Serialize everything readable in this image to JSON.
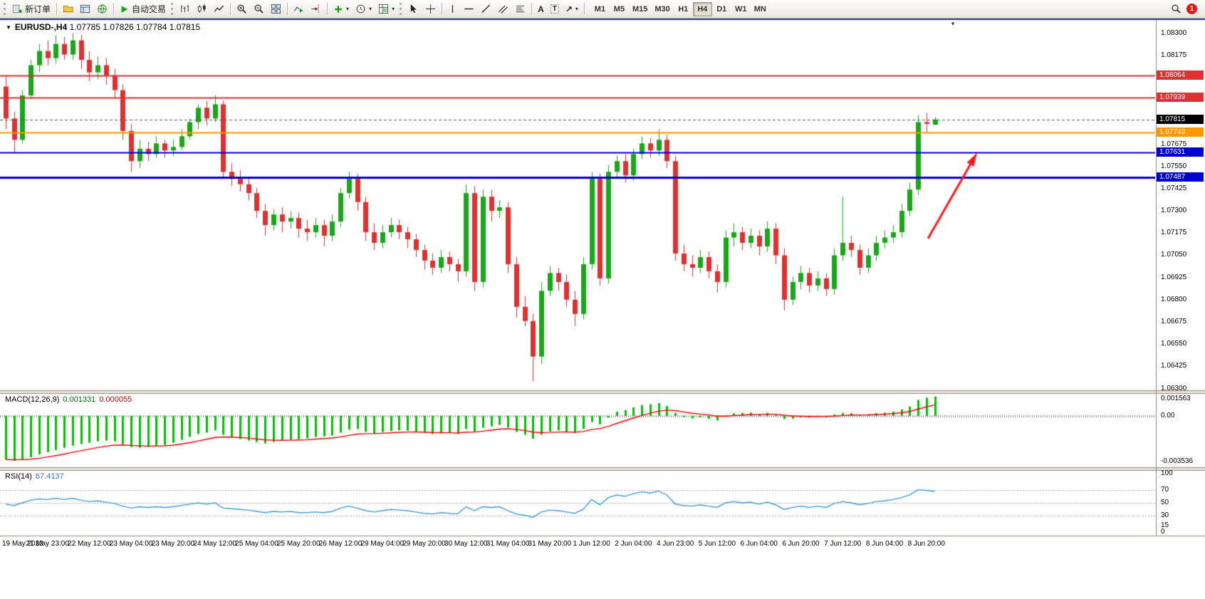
{
  "toolbar": {
    "new_order_label": "新订单",
    "autotrade_label": "自动交易",
    "timeframes": [
      "M1",
      "M5",
      "M15",
      "M30",
      "H1",
      "H4",
      "D1",
      "W1",
      "MN"
    ],
    "active_timeframe": "H4",
    "notification_count": "1"
  },
  "chart": {
    "symbol_period": "EURUSD-,H4",
    "ohlc": "1.07785 1.07826 1.07784 1.07815"
  },
  "chart_data": {
    "type": "candlestick",
    "symbol": "EURUSD-",
    "timeframe": "H4",
    "price_max": 1.08375,
    "price_min": 1.0629,
    "y_ticks": [
      "1.08300",
      "1.08175",
      "1.08050",
      "1.07925",
      "1.07800",
      "1.07675",
      "1.07550",
      "1.07425",
      "1.07300",
      "1.07175",
      "1.07050",
      "1.06925",
      "1.06800",
      "1.06675",
      "1.06550",
      "1.06425",
      "1.06300"
    ],
    "x_labels": [
      "19 May 2023",
      "21 May 23:00",
      "22 May 12:00",
      "23 May 04:00",
      "23 May 20:00",
      "24 May 12:00",
      "25 May 04:00",
      "25 May 20:00",
      "26 May 12:00",
      "29 May 04:00",
      "29 May 20:00",
      "30 May 12:00",
      "31 May 04:00",
      "31 May 20:00",
      "1 Jun 12:00",
      "2 Jun 04:00",
      "4 Jun 23:00",
      "5 Jun 12:00",
      "6 Jun 04:00",
      "6 Jun 20:00",
      "7 Jun 12:00",
      "8 Jun 04:00",
      "8 Jun 20:00"
    ],
    "x_label_step": 5,
    "right_empty_slots": 26,
    "hlines": [
      {
        "price": 1.08064,
        "label": "1.08064",
        "color": "#e03030",
        "width": 2
      },
      {
        "price": 1.07939,
        "label": "1.07939",
        "color": "#e03030",
        "width": 2
      },
      {
        "price": 1.07743,
        "label": "1.07743",
        "color": "#ff9800",
        "width": 2
      },
      {
        "price": 1.07631,
        "label": "1.07631",
        "color": "#0000d0",
        "width": 2
      },
      {
        "price": 1.07487,
        "label": "1.07487",
        "color": "#0000d0",
        "width": 3
      }
    ],
    "bid": {
      "price": 1.07815,
      "label": "1.07815",
      "color": "#000000"
    },
    "arrow": {
      "from_slot": 110.2,
      "from_price": 1.07145,
      "to_slot": 115.6,
      "to_price": 1.0759,
      "color": "#ff1a1a"
    },
    "candles": [
      [
        1.08,
        1.0806,
        1.0776,
        1.0782
      ],
      [
        1.0782,
        1.0786,
        1.0763,
        1.077
      ],
      [
        1.077,
        1.0798,
        1.0768,
        1.0795
      ],
      [
        1.0795,
        1.0815,
        1.0793,
        1.0812
      ],
      [
        1.0812,
        1.0824,
        1.0808,
        1.082
      ],
      [
        1.082,
        1.0826,
        1.0812,
        1.0816
      ],
      [
        1.0816,
        1.0829,
        1.0813,
        1.0824
      ],
      [
        1.0824,
        1.0828,
        1.0815,
        1.0818
      ],
      [
        1.0818,
        1.083,
        1.0815,
        1.0826
      ],
      [
        1.0826,
        1.0829,
        1.081,
        1.0815
      ],
      [
        1.0815,
        1.082,
        1.0803,
        1.0808
      ],
      [
        1.0808,
        1.0817,
        1.0804,
        1.0812
      ],
      [
        1.0812,
        1.0816,
        1.0801,
        1.0806
      ],
      [
        1.0806,
        1.081,
        1.0793,
        1.0798
      ],
      [
        1.0798,
        1.0801,
        1.077,
        1.0775
      ],
      [
        1.0775,
        1.0779,
        1.0752,
        1.0758
      ],
      [
        1.0758,
        1.077,
        1.0754,
        1.0765
      ],
      [
        1.0765,
        1.0769,
        1.0758,
        1.0762
      ],
      [
        1.0762,
        1.0772,
        1.076,
        1.0768
      ],
      [
        1.0768,
        1.077,
        1.076,
        1.0764
      ],
      [
        1.0764,
        1.077,
        1.0761,
        1.0766
      ],
      [
        1.0766,
        1.0776,
        1.0764,
        1.0772
      ],
      [
        1.0772,
        1.0782,
        1.077,
        1.078
      ],
      [
        1.078,
        1.079,
        1.0776,
        1.0788
      ],
      [
        1.0788,
        1.0792,
        1.0778,
        1.0782
      ],
      [
        1.0782,
        1.0795,
        1.078,
        1.079
      ],
      [
        1.079,
        1.0792,
        1.0748,
        1.0752
      ],
      [
        1.0752,
        1.0757,
        1.0744,
        1.0748
      ],
      [
        1.0748,
        1.0753,
        1.0741,
        1.0745
      ],
      [
        1.0745,
        1.0749,
        1.0736,
        1.074
      ],
      [
        1.074,
        1.0743,
        1.0726,
        1.073
      ],
      [
        1.073,
        1.0734,
        1.0716,
        1.0722
      ],
      [
        1.0722,
        1.0731,
        1.0719,
        1.0728
      ],
      [
        1.0728,
        1.0732,
        1.0718,
        1.0724
      ],
      [
        1.0724,
        1.073,
        1.072,
        1.0726
      ],
      [
        1.0726,
        1.0729,
        1.0715,
        1.072
      ],
      [
        1.072,
        1.0725,
        1.0713,
        1.0718
      ],
      [
        1.0718,
        1.0726,
        1.0715,
        1.0722
      ],
      [
        1.0722,
        1.0725,
        1.071,
        1.0716
      ],
      [
        1.0716,
        1.0728,
        1.0713,
        1.0724
      ],
      [
        1.0724,
        1.0743,
        1.0721,
        1.074
      ],
      [
        1.074,
        1.0752,
        1.0737,
        1.0748
      ],
      [
        1.0748,
        1.0751,
        1.073,
        1.0735
      ],
      [
        1.0735,
        1.0738,
        1.0713,
        1.0718
      ],
      [
        1.0718,
        1.0723,
        1.0708,
        1.0712
      ],
      [
        1.0712,
        1.0722,
        1.0709,
        1.0718
      ],
      [
        1.0718,
        1.0726,
        1.0715,
        1.0722
      ],
      [
        1.0722,
        1.0725,
        1.0714,
        1.0718
      ],
      [
        1.0718,
        1.0721,
        1.0709,
        1.0714
      ],
      [
        1.0714,
        1.0717,
        1.0704,
        1.0708
      ],
      [
        1.0708,
        1.0711,
        1.0697,
        1.0702
      ],
      [
        1.0702,
        1.0706,
        1.0694,
        1.0698
      ],
      [
        1.0698,
        1.0708,
        1.0695,
        1.0704
      ],
      [
        1.0704,
        1.0707,
        1.0696,
        1.07
      ],
      [
        1.07,
        1.0703,
        1.069,
        1.0696
      ],
      [
        1.0696,
        1.0745,
        1.0693,
        1.074
      ],
      [
        1.074,
        1.0744,
        1.0685,
        1.069
      ],
      [
        1.069,
        1.0742,
        1.0687,
        1.0738
      ],
      [
        1.0738,
        1.0742,
        1.0724,
        1.073
      ],
      [
        1.073,
        1.0736,
        1.0726,
        1.0732
      ],
      [
        1.0732,
        1.0735,
        1.0695,
        1.07
      ],
      [
        1.07,
        1.0704,
        1.067,
        1.0676
      ],
      [
        1.0676,
        1.0682,
        1.0665,
        1.0668
      ],
      [
        1.0668,
        1.0672,
        1.0634,
        1.0648
      ],
      [
        1.0648,
        1.069,
        1.0644,
        1.0685
      ],
      [
        1.0685,
        1.0699,
        1.0682,
        1.0695
      ],
      [
        1.0695,
        1.0698,
        1.0685,
        1.069
      ],
      [
        1.069,
        1.0694,
        1.0676,
        1.068
      ],
      [
        1.068,
        1.0685,
        1.0665,
        1.0672
      ],
      [
        1.0672,
        1.0704,
        1.0669,
        1.07
      ],
      [
        1.07,
        1.0752,
        1.0697,
        1.0748
      ],
      [
        1.0748,
        1.0751,
        1.0688,
        1.0692
      ],
      [
        1.0692,
        1.0756,
        1.0689,
        1.0752
      ],
      [
        1.0752,
        1.0761,
        1.0748,
        1.0758
      ],
      [
        1.0758,
        1.0762,
        1.0746,
        1.075
      ],
      [
        1.075,
        1.0765,
        1.0747,
        1.0762
      ],
      [
        1.0762,
        1.0772,
        1.0759,
        1.0768
      ],
      [
        1.0768,
        1.0771,
        1.076,
        1.0764
      ],
      [
        1.0764,
        1.0776,
        1.0761,
        1.077
      ],
      [
        1.077,
        1.0773,
        1.0754,
        1.0758
      ],
      [
        1.0758,
        1.0761,
        1.0702,
        1.0706
      ],
      [
        1.0706,
        1.0711,
        1.0696,
        1.07
      ],
      [
        1.07,
        1.0705,
        1.0693,
        1.0698
      ],
      [
        1.0698,
        1.0708,
        1.0695,
        1.0704
      ],
      [
        1.0704,
        1.0707,
        1.0692,
        1.0696
      ],
      [
        1.0696,
        1.07,
        1.0684,
        1.069
      ],
      [
        1.069,
        1.0719,
        1.0687,
        1.0715
      ],
      [
        1.0715,
        1.0723,
        1.071,
        1.0718
      ],
      [
        1.0718,
        1.0721,
        1.0708,
        1.0712
      ],
      [
        1.0712,
        1.072,
        1.0709,
        1.0716
      ],
      [
        1.0716,
        1.0719,
        1.0705,
        1.071
      ],
      [
        1.071,
        1.0724,
        1.0707,
        1.072
      ],
      [
        1.072,
        1.0723,
        1.07,
        1.0705
      ],
      [
        1.0705,
        1.0709,
        1.0674,
        1.068
      ],
      [
        1.068,
        1.0693,
        1.0677,
        1.069
      ],
      [
        1.069,
        1.0699,
        1.0686,
        1.0695
      ],
      [
        1.0695,
        1.0698,
        1.0684,
        1.0688
      ],
      [
        1.0688,
        1.0696,
        1.0685,
        1.0692
      ],
      [
        1.0692,
        1.0695,
        1.0682,
        1.0686
      ],
      [
        1.0686,
        1.0709,
        1.0683,
        1.0705
      ],
      [
        1.0705,
        1.0738,
        1.0702,
        1.0712
      ],
      [
        1.0712,
        1.0716,
        1.0704,
        1.0708
      ],
      [
        1.0708,
        1.0711,
        1.0694,
        1.0698
      ],
      [
        1.0698,
        1.0709,
        1.0695,
        1.0705
      ],
      [
        1.0705,
        1.0716,
        1.0702,
        1.0712
      ],
      [
        1.0712,
        1.0719,
        1.0709,
        1.0715
      ],
      [
        1.0715,
        1.0722,
        1.0712,
        1.0718
      ],
      [
        1.0718,
        1.0734,
        1.0715,
        1.073
      ],
      [
        1.073,
        1.0746,
        1.0727,
        1.0742
      ],
      [
        1.0742,
        1.0784,
        1.0739,
        1.078
      ],
      [
        1.078,
        1.0785,
        1.0774,
        1.0779
      ],
      [
        1.07785,
        1.07826,
        1.07784,
        1.07815
      ]
    ]
  },
  "macd": {
    "label": "MACD(12,26,9)",
    "value_main": "0.001331",
    "value_signal": "0.000055",
    "scale_max": 0.001563,
    "scale_min": -0.003536,
    "axis_labels": [
      "0.001563",
      "0.00",
      "-0.003536"
    ],
    "values": [
      -0.003,
      -0.0031,
      -0.003,
      -0.00285,
      -0.00265,
      -0.0025,
      -0.00235,
      -0.0022,
      -0.00205,
      -0.00195,
      -0.00185,
      -0.00175,
      -0.0017,
      -0.00175,
      -0.00195,
      -0.00215,
      -0.0022,
      -0.00215,
      -0.00205,
      -0.002,
      -0.00185,
      -0.00165,
      -0.00145,
      -0.00125,
      -0.00115,
      -0.001,
      -0.0013,
      -0.0015,
      -0.0016,
      -0.0017,
      -0.0018,
      -0.0019,
      -0.0018,
      -0.00172,
      -0.00165,
      -0.0016,
      -0.00155,
      -0.00145,
      -0.00142,
      -0.00135,
      -0.00115,
      -0.00095,
      -0.0009,
      -0.0011,
      -0.0012,
      -0.00112,
      -0.00105,
      -0.001,
      -0.00102,
      -0.00108,
      -0.00118,
      -0.00125,
      -0.0012,
      -0.00118,
      -0.00125,
      -0.0009,
      -0.00108,
      -0.00082,
      -0.00072,
      -0.00062,
      -0.0008,
      -0.0011,
      -0.0013,
      -0.00158,
      -0.0013,
      -0.00108,
      -0.001,
      -0.00108,
      -0.00118,
      -0.0009,
      -0.00042,
      -0.00058,
      -0.00012,
      0.00028,
      0.0004,
      0.00058,
      0.00075,
      0.0008,
      0.00088,
      0.00068,
      0.00022,
      -8e-05,
      -0.00018,
      -0.0001,
      -0.0002,
      -0.00032,
      -2e-05,
      0.00018,
      0.0002,
      0.00022,
      0.00012,
      0.0002,
      8e-05,
      -0.00022,
      -0.0002,
      -0.0001,
      -0.00012,
      -2e-05,
      -0.0001,
      0.0001,
      0.0002,
      0.00018,
      8e-05,
      0.0001,
      0.00018,
      0.00022,
      0.0003,
      0.00045,
      0.00065,
      0.0011,
      0.00125,
      0.001331
    ]
  },
  "rsi": {
    "label": "RSI(14)",
    "value": "67.4137",
    "levels": [
      100,
      70,
      50,
      30,
      15,
      0
    ],
    "dashed_levels": [
      70,
      50,
      30
    ],
    "values": [
      48,
      46,
      50,
      54,
      56,
      55,
      57,
      55,
      57,
      54,
      52,
      53,
      51,
      49,
      45,
      42,
      44,
      43,
      44,
      43,
      44,
      46,
      48,
      50,
      48,
      50,
      42,
      41,
      40,
      39,
      37,
      35,
      37,
      36,
      37,
      35,
      35,
      36,
      35,
      37,
      42,
      45,
      42,
      38,
      36,
      38,
      40,
      39,
      38,
      36,
      34,
      33,
      35,
      34,
      33,
      44,
      38,
      44,
      43,
      44,
      38,
      33,
      31,
      28,
      36,
      39,
      38,
      36,
      34,
      40,
      55,
      47,
      58,
      62,
      60,
      64,
      67,
      65,
      68,
      62,
      48,
      46,
      45,
      47,
      45,
      43,
      50,
      52,
      50,
      51,
      48,
      51,
      47,
      40,
      43,
      45,
      43,
      45,
      43,
      49,
      52,
      50,
      47,
      49,
      52,
      53,
      55,
      58,
      62,
      70,
      69,
      67.4137
    ]
  },
  "colors": {
    "bull": "#18a818",
    "bear": "#e03030",
    "macd_hist": "#00c400",
    "macd_signal": "#ff0000",
    "rsi_line": "#3e9adf",
    "separator": "#e6e3dc",
    "panel_border": "#8d8a82",
    "window_top": "#1c2e8c",
    "badge": "#e01818"
  }
}
